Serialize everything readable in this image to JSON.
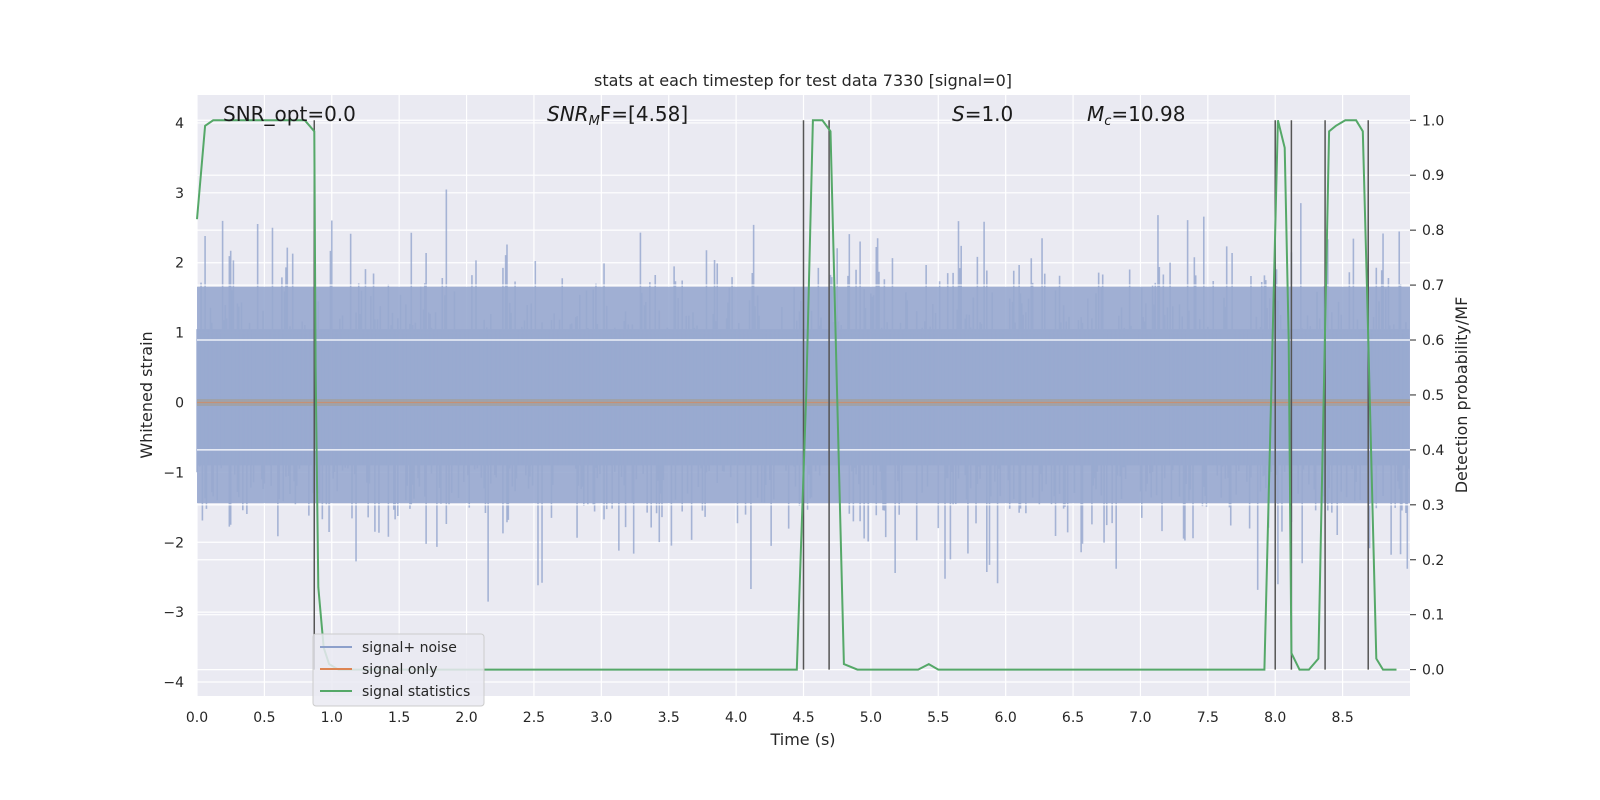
{
  "chart_data": {
    "type": "line",
    "title": "stats at each timestep for test data 7330 [signal=0]",
    "xlabel": "Time (s)",
    "ylabel_left": "Whitened strain",
    "ylabel_right": "Detection probability/MF",
    "xlim": [
      0.0,
      9.0
    ],
    "ylim_left": [
      -4.2,
      4.4
    ],
    "ylim_right": [
      -0.048,
      1.046
    ],
    "x_ticks": [
      "0.0",
      "0.5",
      "1.0",
      "1.5",
      "2.0",
      "2.5",
      "3.0",
      "3.5",
      "4.0",
      "4.5",
      "5.0",
      "5.5",
      "6.0",
      "6.5",
      "7.0",
      "7.5",
      "8.0",
      "8.5"
    ],
    "y_ticks_left": [
      "4",
      "3",
      "2",
      "1",
      "0",
      "−1",
      "−2",
      "−3",
      "−4"
    ],
    "y_ticks_right": [
      "1.0",
      "0.9",
      "0.8",
      "0.7",
      "0.6",
      "0.5",
      "0.4",
      "0.3",
      "0.2",
      "0.1",
      "0.0"
    ],
    "annotations": {
      "snr_opt": "SNR_opt=0.0",
      "snr_mf_main": "SNR",
      "snr_mf_sub": "M",
      "snr_mf_rest": "F=[4.58]",
      "s_main": "S",
      "s_rest": "=1.0",
      "mc_main": "M",
      "mc_sub": "c",
      "mc_rest": "=10.98"
    },
    "grid": true,
    "legend": {
      "placement": "lower-left",
      "entries": [
        {
          "label": "signal+ noise",
          "color": "#8da0cb"
        },
        {
          "label": "signal only",
          "color": "#dd8452"
        },
        {
          "label": "signal statistics",
          "color": "#55a868"
        }
      ]
    },
    "series": [
      {
        "name": "signal+ noise",
        "description_type": "noise-band",
        "x_range": [
          0.0,
          9.0
        ],
        "y_min": -3.7,
        "y_max": 3.8,
        "typical_band": [
          -2.0,
          2.3
        ]
      },
      {
        "name": "signal only",
        "x": [
          0.0,
          9.0
        ],
        "y": [
          0.0,
          0.0
        ]
      },
      {
        "name": "signal statistics",
        "axis": "right",
        "x": [
          0.0,
          0.06,
          0.12,
          0.2,
          0.3,
          0.4,
          0.5,
          0.6,
          0.7,
          0.8,
          0.87,
          0.88,
          0.9,
          0.94,
          0.98,
          1.05,
          1.5,
          2.0,
          2.5,
          3.0,
          3.5,
          4.0,
          4.45,
          4.52,
          4.57,
          4.64,
          4.7,
          4.8,
          4.9,
          5.0,
          5.35,
          5.43,
          5.5,
          6.0,
          6.5,
          7.0,
          7.5,
          7.6,
          7.7,
          7.8,
          7.92,
          7.97,
          8.02,
          8.07,
          8.1,
          8.12,
          8.18,
          8.25,
          8.32,
          8.4,
          8.45,
          8.52,
          8.6,
          8.65,
          8.68,
          8.75,
          8.8,
          8.9
        ],
        "y": [
          0.82,
          0.99,
          1.0,
          1.0,
          1.0,
          1.0,
          1.0,
          1.0,
          1.0,
          1.0,
          0.98,
          0.55,
          0.15,
          0.04,
          0.01,
          0.0,
          0.0,
          0.0,
          0.0,
          0.0,
          0.0,
          0.0,
          0.0,
          0.5,
          1.0,
          1.0,
          0.98,
          0.01,
          0.0,
          0.0,
          0.0,
          0.01,
          0.0,
          0.0,
          0.0,
          0.0,
          0.0,
          0.0,
          0.0,
          0.0,
          0.0,
          0.5,
          1.0,
          0.95,
          0.6,
          0.03,
          0.0,
          0.0,
          0.02,
          0.98,
          0.99,
          1.0,
          1.0,
          0.98,
          0.7,
          0.02,
          0.0,
          0.0
        ]
      }
    ],
    "vertical_markers_x": [
      0.87,
      4.5,
      4.69,
      8.0,
      8.12,
      8.37,
      8.69
    ]
  }
}
